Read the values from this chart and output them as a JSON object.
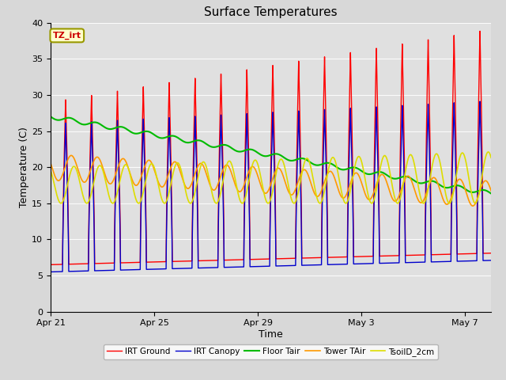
{
  "title": "Surface Temperatures",
  "xlabel": "Time",
  "ylabel": "Temperature (C)",
  "ylim": [
    0,
    40
  ],
  "annotation_text": "TZ_irt",
  "legend": [
    "IRT Ground",
    "IRT Canopy",
    "Floor Tair",
    "Tower TAir",
    "TsoilD_2cm"
  ],
  "colors": {
    "IRT Ground": "#ff0000",
    "IRT Canopy": "#0000cc",
    "Floor Tair": "#00bb00",
    "Tower TAir": "#ff9900",
    "TsoilD_2cm": "#dddd00"
  },
  "xtick_labels": [
    "Apr 21",
    "Apr 25",
    "Apr 29",
    "May 3",
    "May 7"
  ],
  "xtick_positions": [
    0,
    4,
    8,
    12,
    16
  ],
  "fig_facecolor": "#d8d8d8",
  "ax_facecolor": "#e0e0e0"
}
